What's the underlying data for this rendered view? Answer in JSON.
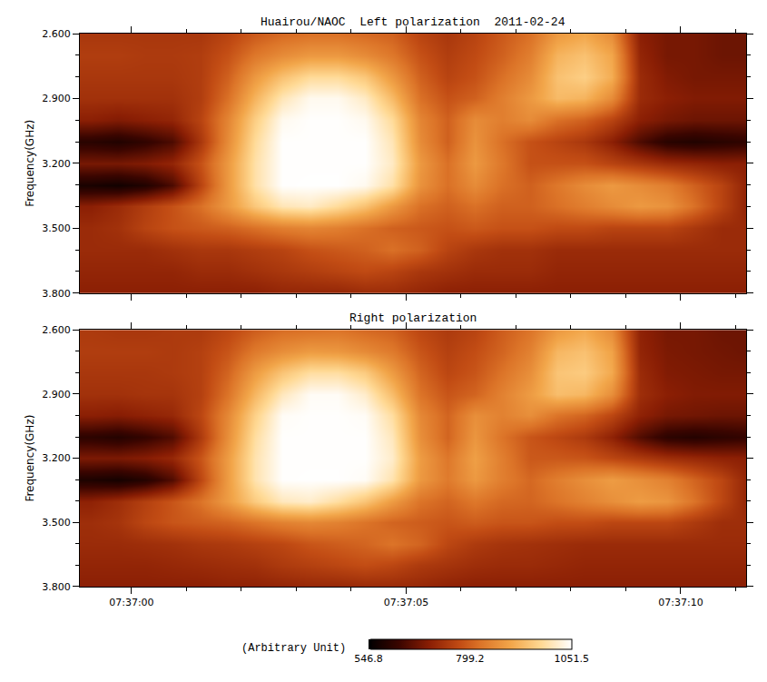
{
  "chart_data": {
    "type": "heatmap",
    "y_label": "Frequency(GHz)",
    "x": [
      "2011-02-24 07:36:59.25",
      "2011-02-24 07:36:59.75",
      "2011-02-24 07:37:00.25",
      "2011-02-24 07:37:00.75",
      "2011-02-24 07:37:01.25",
      "2011-02-24 07:37:01.75",
      "2011-02-24 07:37:02.25",
      "2011-02-24 07:37:02.75",
      "2011-02-24 07:37:03.25",
      "2011-02-24 07:37:03.75",
      "2011-02-24 07:37:04.25",
      "2011-02-24 07:37:04.75",
      "2011-02-24 07:37:05.25",
      "2011-02-24 07:37:05.75",
      "2011-02-24 07:37:06.25",
      "2011-02-24 07:37:06.75",
      "2011-02-24 07:37:07.25",
      "2011-02-24 07:37:07.75",
      "2011-02-24 07:37:08.25",
      "2011-02-24 07:37:08.75",
      "2011-02-24 07:37:09.25",
      "2011-02-24 07:37:09.75",
      "2011-02-24 07:37:10.25",
      "2011-02-24 07:37:10.75",
      "2011-02-24 07:37:11.25"
    ],
    "y": [
      2.6,
      2.7,
      2.8,
      2.9,
      3.0,
      3.1,
      3.2,
      3.3,
      3.4,
      3.5,
      3.6,
      3.7,
      3.8
    ],
    "xlim": [
      "2011-02-24 07:36:59.06",
      "2011-02-24 07:37:11.19"
    ],
    "ylim": [
      3.8,
      2.6
    ],
    "xticks": [
      {
        "value": "2011-02-24 07:37:00",
        "label": "07:37:00"
      },
      {
        "value": "2011-02-24 07:37:05",
        "label": "07:37:05"
      },
      {
        "value": "2011-02-24 07:37:10",
        "label": "07:37:10"
      }
    ],
    "yticks": [
      {
        "value": 2.6,
        "label": "2.600"
      },
      {
        "value": 2.9,
        "label": "2.900"
      },
      {
        "value": 3.2,
        "label": "3.200"
      },
      {
        "value": 3.5,
        "label": "3.500"
      },
      {
        "value": 3.8,
        "label": "3.800"
      }
    ],
    "colorbar": {
      "range": [
        546.8,
        1051.5
      ],
      "ticks": [
        546.8,
        799.2,
        1051.5
      ],
      "label": "(Arbitrary Unit)"
    },
    "panels": [
      {
        "title": "Huairou/NAOC  Left polarization  2011-02-24",
        "cells": [
          [
            740,
            740,
            740,
            740,
            740,
            760,
            790,
            810,
            820,
            820,
            810,
            800,
            760,
            740,
            760,
            790,
            820,
            880,
            900,
            860,
            700,
            680,
            680,
            670,
            670
          ],
          [
            750,
            750,
            745,
            745,
            750,
            780,
            830,
            860,
            880,
            880,
            860,
            830,
            780,
            750,
            770,
            800,
            840,
            920,
            940,
            900,
            710,
            680,
            680,
            670,
            670
          ],
          [
            740,
            740,
            740,
            740,
            750,
            800,
            880,
            940,
            980,
            980,
            950,
            880,
            800,
            760,
            780,
            820,
            860,
            940,
            960,
            910,
            720,
            690,
            680,
            680,
            680
          ],
          [
            730,
            730,
            730,
            730,
            750,
            820,
            920,
            1000,
            1040,
            1040,
            1010,
            930,
            820,
            780,
            800,
            840,
            880,
            930,
            920,
            860,
            720,
            700,
            690,
            690,
            690
          ],
          [
            700,
            690,
            700,
            710,
            760,
            850,
            960,
            1040,
            1050,
            1050,
            1040,
            980,
            850,
            800,
            860,
            840,
            860,
            820,
            800,
            760,
            700,
            680,
            670,
            670,
            670
          ],
          [
            600,
            590,
            610,
            640,
            740,
            860,
            980,
            1050,
            1050,
            1050,
            1050,
            1000,
            860,
            800,
            870,
            820,
            780,
            760,
            740,
            700,
            640,
            600,
            590,
            600,
            610
          ],
          [
            680,
            680,
            690,
            710,
            780,
            880,
            990,
            1050,
            1050,
            1050,
            1050,
            1010,
            880,
            820,
            880,
            830,
            780,
            780,
            780,
            760,
            740,
            720,
            710,
            700,
            700
          ],
          [
            580,
            570,
            590,
            640,
            760,
            880,
            990,
            1050,
            1051,
            1051,
            1040,
            990,
            870,
            820,
            860,
            820,
            800,
            830,
            860,
            880,
            860,
            840,
            800,
            760,
            700
          ],
          [
            700,
            720,
            750,
            780,
            820,
            880,
            950,
            1000,
            1010,
            980,
            940,
            880,
            820,
            800,
            820,
            800,
            800,
            820,
            840,
            860,
            880,
            870,
            820,
            760,
            700
          ],
          [
            720,
            730,
            760,
            780,
            790,
            800,
            820,
            840,
            850,
            840,
            820,
            800,
            790,
            780,
            790,
            780,
            780,
            770,
            770,
            760,
            760,
            760,
            740,
            720,
            720
          ],
          [
            720,
            720,
            720,
            730,
            740,
            740,
            750,
            760,
            780,
            790,
            800,
            820,
            800,
            760,
            740,
            730,
            730,
            720,
            720,
            720,
            720,
            720,
            720,
            720,
            720
          ],
          [
            710,
            710,
            710,
            710,
            720,
            720,
            730,
            740,
            750,
            760,
            770,
            760,
            740,
            730,
            720,
            720,
            720,
            710,
            710,
            710,
            710,
            710,
            710,
            710,
            710
          ],
          [
            700,
            700,
            700,
            700,
            700,
            700,
            700,
            710,
            710,
            710,
            720,
            720,
            710,
            700,
            700,
            700,
            700,
            700,
            700,
            700,
            700,
            700,
            700,
            700,
            700
          ]
        ]
      },
      {
        "title": "Right polarization",
        "cells": [
          [
            745,
            740,
            740,
            745,
            745,
            765,
            795,
            815,
            820,
            825,
            810,
            800,
            765,
            745,
            760,
            795,
            825,
            880,
            905,
            860,
            705,
            680,
            680,
            670,
            670
          ],
          [
            750,
            750,
            750,
            745,
            755,
            785,
            835,
            865,
            885,
            880,
            860,
            835,
            785,
            755,
            775,
            805,
            845,
            925,
            940,
            895,
            710,
            685,
            680,
            675,
            670
          ],
          [
            740,
            740,
            740,
            745,
            755,
            805,
            885,
            945,
            985,
            985,
            955,
            885,
            805,
            765,
            785,
            825,
            865,
            945,
            955,
            905,
            720,
            690,
            685,
            680,
            680
          ],
          [
            730,
            730,
            735,
            735,
            755,
            825,
            925,
            1005,
            1045,
            1045,
            1015,
            935,
            825,
            785,
            805,
            845,
            885,
            935,
            925,
            865,
            725,
            700,
            690,
            690,
            690
          ],
          [
            700,
            695,
            705,
            715,
            765,
            855,
            965,
            1045,
            1050,
            1050,
            1045,
            985,
            855,
            805,
            865,
            845,
            865,
            825,
            805,
            765,
            705,
            680,
            675,
            670,
            670
          ],
          [
            605,
            595,
            615,
            645,
            745,
            865,
            985,
            1050,
            1050,
            1050,
            1050,
            1005,
            865,
            805,
            875,
            825,
            785,
            765,
            745,
            705,
            645,
            605,
            595,
            605,
            615
          ],
          [
            685,
            685,
            695,
            715,
            785,
            885,
            995,
            1050,
            1050,
            1050,
            1050,
            1015,
            885,
            830,
            890,
            840,
            790,
            790,
            785,
            765,
            745,
            725,
            715,
            705,
            700
          ],
          [
            585,
            575,
            595,
            645,
            765,
            885,
            995,
            1050,
            1051,
            1051,
            1045,
            995,
            880,
            835,
            880,
            840,
            810,
            840,
            865,
            885,
            865,
            845,
            805,
            765,
            705
          ],
          [
            705,
            725,
            755,
            785,
            825,
            885,
            955,
            1005,
            1015,
            985,
            945,
            885,
            825,
            805,
            830,
            810,
            805,
            825,
            845,
            865,
            885,
            875,
            825,
            765,
            705
          ],
          [
            725,
            735,
            765,
            785,
            795,
            805,
            825,
            845,
            855,
            845,
            825,
            805,
            795,
            785,
            795,
            785,
            785,
            775,
            775,
            765,
            765,
            765,
            745,
            725,
            725
          ],
          [
            720,
            720,
            725,
            730,
            740,
            745,
            755,
            765,
            785,
            795,
            805,
            825,
            805,
            765,
            745,
            735,
            730,
            725,
            720,
            720,
            720,
            720,
            720,
            720,
            720
          ],
          [
            710,
            710,
            710,
            715,
            720,
            725,
            730,
            745,
            755,
            765,
            775,
            765,
            745,
            735,
            725,
            720,
            720,
            715,
            710,
            710,
            710,
            710,
            710,
            710,
            710
          ],
          [
            700,
            700,
            700,
            700,
            700,
            705,
            705,
            710,
            715,
            715,
            720,
            720,
            715,
            705,
            700,
            700,
            700,
            700,
            700,
            700,
            700,
            700,
            700,
            700,
            700
          ]
        ]
      }
    ]
  }
}
